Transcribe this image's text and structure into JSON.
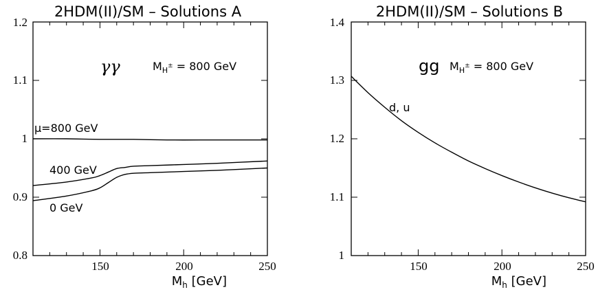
{
  "chart_data": [
    {
      "type": "line",
      "title": "2HDM(II)/SM – Solutions A",
      "xlabel": "M_h [GeV]",
      "ylabel": "",
      "xlim": [
        110,
        250
      ],
      "ylim": [
        0.8,
        1.2
      ],
      "x_ticks": [
        "150",
        "200",
        "250"
      ],
      "y_ticks": [
        "0.8",
        "0.9",
        "1",
        "1.1",
        "1.2"
      ],
      "grid": false,
      "annotations": [
        "γγ",
        "M_H± = 800 GeV"
      ],
      "series": [
        {
          "name": "μ=800 GeV",
          "x": [
            110,
            130,
            150,
            170,
            190,
            210,
            230,
            250
          ],
          "values": [
            1.0,
            1.0,
            0.999,
            0.999,
            0.998,
            0.998,
            0.998,
            0.998
          ]
        },
        {
          "name": "400 GeV",
          "x": [
            110,
            130,
            145,
            150,
            155,
            160,
            165,
            170,
            180,
            200,
            220,
            250
          ],
          "values": [
            0.92,
            0.926,
            0.933,
            0.937,
            0.943,
            0.949,
            0.951,
            0.953,
            0.954,
            0.956,
            0.958,
            0.962
          ]
        },
        {
          "name": "0 GeV",
          "x": [
            110,
            130,
            145,
            150,
            155,
            160,
            165,
            170,
            180,
            200,
            220,
            250
          ],
          "values": [
            0.894,
            0.902,
            0.911,
            0.916,
            0.925,
            0.934,
            0.939,
            0.941,
            0.942,
            0.944,
            0.946,
            0.95
          ]
        }
      ]
    },
    {
      "type": "line",
      "title": "2HDM(II)/SM – Solutions B",
      "xlabel": "M_h [GeV]",
      "ylabel": "",
      "xlim": [
        110,
        250
      ],
      "ylim": [
        1.0,
        1.4
      ],
      "x_ticks": [
        "150",
        "200",
        "250"
      ],
      "y_ticks": [
        "1",
        "1.1",
        "1.2",
        "1.3",
        "1.4"
      ],
      "grid": false,
      "annotations": [
        "gg",
        "M_H± = 800 GeV"
      ],
      "series": [
        {
          "name": "d, u",
          "x": [
            110,
            120,
            130,
            140,
            150,
            160,
            170,
            180,
            190,
            200,
            210,
            220,
            230,
            240,
            250
          ],
          "values": [
            1.307,
            1.279,
            1.254,
            1.231,
            1.211,
            1.193,
            1.177,
            1.162,
            1.149,
            1.137,
            1.126,
            1.116,
            1.107,
            1.099,
            1.092
          ]
        }
      ]
    }
  ]
}
